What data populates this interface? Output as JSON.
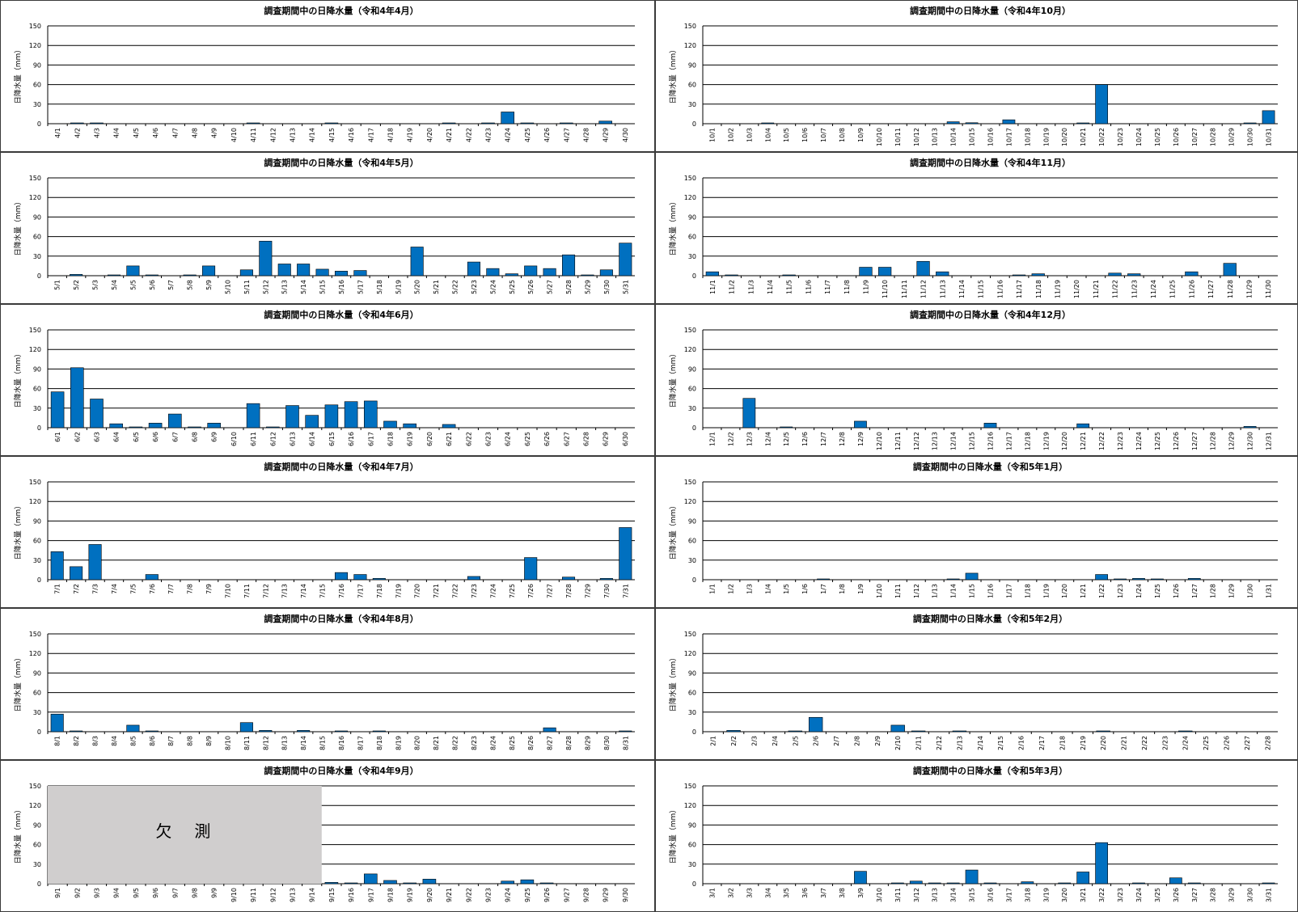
{
  "chart_data": [
    {
      "type": "bar",
      "title": "調査期間中の日降水量（令和4年4月）",
      "ylabel": "日降水量（mm）",
      "ylim": [
        0,
        150
      ],
      "yticks": [
        0,
        30,
        60,
        90,
        120,
        150
      ],
      "grid": true,
      "categories": [
        "4/1",
        "4/2",
        "4/3",
        "4/4",
        "4/5",
        "4/6",
        "4/7",
        "4/8",
        "4/9",
        "4/10",
        "4/11",
        "4/12",
        "4/13",
        "4/14",
        "4/15",
        "4/16",
        "4/17",
        "4/18",
        "4/19",
        "4/20",
        "4/21",
        "4/22",
        "4/23",
        "4/24",
        "4/25",
        "4/26",
        "4/27",
        "4/28",
        "4/29",
        "4/30"
      ],
      "values": [
        0,
        0.5,
        0.5,
        0,
        0,
        0,
        0,
        0,
        0,
        0,
        0.5,
        0,
        0,
        0,
        0.5,
        0,
        0,
        0,
        0,
        0,
        0.5,
        0,
        0.5,
        18,
        1,
        0,
        0.5,
        0,
        4,
        0
      ],
      "bar_color": "#0070C0"
    },
    {
      "type": "bar",
      "title": "調査期間中の日降水量（令和4年10月）",
      "ylabel": "日降水量（mm）",
      "ylim": [
        0,
        150
      ],
      "yticks": [
        0,
        30,
        60,
        90,
        120,
        150
      ],
      "grid": true,
      "categories": [
        "10/1",
        "10/2",
        "10/3",
        "10/4",
        "10/5",
        "10/6",
        "10/7",
        "10/8",
        "10/9",
        "10/10",
        "10/11",
        "10/12",
        "10/13",
        "10/14",
        "10/15",
        "10/16",
        "10/17",
        "10/18",
        "10/19",
        "10/20",
        "10/21",
        "10/22",
        "10/23",
        "10/24",
        "10/25",
        "10/26",
        "10/27",
        "10/28",
        "10/29",
        "10/30",
        "10/31"
      ],
      "values": [
        0,
        0,
        0,
        0.5,
        0,
        0,
        0,
        0,
        0,
        0,
        0,
        0,
        0,
        3,
        1.5,
        0,
        6,
        0,
        0,
        0,
        0.5,
        60,
        0,
        0,
        0,
        0,
        0,
        0,
        0,
        1,
        20
      ],
      "bar_color": "#0070C0"
    },
    {
      "type": "bar",
      "title": "調査期間中の日降水量（令和4年5月）",
      "ylabel": "日降水量（mm）",
      "ylim": [
        0,
        150
      ],
      "yticks": [
        0,
        30,
        60,
        90,
        120,
        150
      ],
      "grid": true,
      "categories": [
        "5/1",
        "5/2",
        "5/3",
        "5/4",
        "5/5",
        "5/6",
        "5/7",
        "5/8",
        "5/9",
        "5/10",
        "5/11",
        "5/12",
        "5/13",
        "5/14",
        "5/15",
        "5/16",
        "5/17",
        "5/18",
        "5/19",
        "5/20",
        "5/21",
        "5/22",
        "5/23",
        "5/24",
        "5/25",
        "5/26",
        "5/27",
        "5/28",
        "5/29",
        "5/30",
        "5/31"
      ],
      "values": [
        0,
        2,
        0,
        1,
        15,
        0.5,
        0,
        0.5,
        15,
        0,
        9,
        53,
        18,
        18,
        10,
        7,
        8,
        0,
        0,
        44,
        0,
        0,
        21,
        11,
        3,
        15,
        11,
        32,
        1,
        9,
        50
      ],
      "bar_color": "#0070C0"
    },
    {
      "type": "bar",
      "title": "調査期間中の日降水量（令和4年11月）",
      "ylabel": "日降水量（mm）",
      "ylim": [
        0,
        150
      ],
      "yticks": [
        0,
        30,
        60,
        90,
        120,
        150
      ],
      "grid": true,
      "categories": [
        "11/1",
        "11/2",
        "11/3",
        "11/4",
        "11/5",
        "11/6",
        "11/7",
        "11/8",
        "11/9",
        "11/10",
        "11/11",
        "11/12",
        "11/13",
        "11/14",
        "11/15",
        "11/16",
        "11/17",
        "11/18",
        "11/19",
        "11/20",
        "11/21",
        "11/22",
        "11/23",
        "11/24",
        "11/25",
        "11/26",
        "11/27",
        "11/28",
        "11/29",
        "11/30"
      ],
      "values": [
        6,
        1,
        0,
        0,
        0.5,
        0,
        0,
        0,
        13,
        13,
        0,
        22,
        6,
        0,
        0,
        0,
        0.5,
        3,
        0,
        0,
        0,
        4,
        3,
        0,
        0,
        6,
        0,
        19,
        0,
        0
      ],
      "bar_color": "#0070C0"
    },
    {
      "type": "bar",
      "title": "調査期間中の日降水量（令和4年6月）",
      "ylabel": "日降水量（mm）",
      "ylim": [
        0,
        150
      ],
      "yticks": [
        0,
        30,
        60,
        90,
        120,
        150
      ],
      "grid": true,
      "categories": [
        "6/1",
        "6/2",
        "6/3",
        "6/4",
        "6/5",
        "6/6",
        "6/7",
        "6/8",
        "6/9",
        "6/10",
        "6/11",
        "6/12",
        "6/13",
        "6/14",
        "6/15",
        "6/16",
        "6/17",
        "6/18",
        "6/19",
        "6/20",
        "6/21",
        "6/22",
        "6/23",
        "6/24",
        "6/25",
        "6/26",
        "6/27",
        "6/28",
        "6/29",
        "6/30"
      ],
      "values": [
        55,
        92,
        44,
        6,
        1,
        7,
        21,
        0.5,
        7,
        0,
        37,
        1,
        34,
        19,
        35,
        40,
        41,
        10,
        6,
        0,
        5,
        0,
        0,
        0,
        0,
        0,
        0,
        0,
        0,
        0
      ],
      "bar_color": "#0070C0"
    },
    {
      "type": "bar",
      "title": "調査期間中の日降水量（令和4年12月）",
      "ylabel": "日降水量（mm）",
      "ylim": [
        0,
        150
      ],
      "yticks": [
        0,
        30,
        60,
        90,
        120,
        150
      ],
      "grid": true,
      "categories": [
        "12/1",
        "12/2",
        "12/3",
        "12/4",
        "12/5",
        "12/6",
        "12/7",
        "12/8",
        "12/9",
        "12/10",
        "12/11",
        "12/12",
        "12/13",
        "12/14",
        "12/15",
        "12/16",
        "12/17",
        "12/18",
        "12/19",
        "12/20",
        "12/21",
        "12/22",
        "12/23",
        "12/24",
        "12/25",
        "12/26",
        "12/27",
        "12/28",
        "12/29",
        "12/30",
        "12/31"
      ],
      "values": [
        0,
        0,
        45,
        0,
        0.5,
        0,
        0,
        0,
        10,
        0,
        0,
        0,
        0,
        0,
        0,
        7,
        0,
        0,
        0,
        0,
        6,
        0,
        0,
        0,
        0,
        0,
        0,
        0,
        0,
        2,
        0
      ],
      "bar_color": "#0070C0"
    },
    {
      "type": "bar",
      "title": "調査期間中の日降水量（令和4年7月）",
      "ylabel": "日降水量（mm）",
      "ylim": [
        0,
        150
      ],
      "yticks": [
        0,
        30,
        60,
        90,
        120,
        150
      ],
      "grid": true,
      "categories": [
        "7/1",
        "7/2",
        "7/3",
        "7/4",
        "7/5",
        "7/6",
        "7/7",
        "7/8",
        "7/9",
        "7/10",
        "7/11",
        "7/12",
        "7/13",
        "7/14",
        "7/15",
        "7/16",
        "7/17",
        "7/18",
        "7/19",
        "7/20",
        "7/21",
        "7/22",
        "7/23",
        "7/24",
        "7/25",
        "7/26",
        "7/27",
        "7/28",
        "7/29",
        "7/30",
        "7/31"
      ],
      "values": [
        43,
        20,
        54,
        0,
        0,
        8,
        0,
        0,
        0,
        0,
        0,
        0,
        0,
        0,
        0,
        11,
        8,
        2,
        0,
        0,
        0,
        0,
        5,
        0,
        0,
        34,
        0,
        4,
        0,
        2,
        80
      ],
      "bar_color": "#0070C0"
    },
    {
      "type": "bar",
      "title": "調査期間中の日降水量（令和5年1月）",
      "ylabel": "日降水量（mm）",
      "ylim": [
        0,
        150
      ],
      "yticks": [
        0,
        30,
        60,
        90,
        120,
        150
      ],
      "grid": true,
      "categories": [
        "1/1",
        "1/2",
        "1/3",
        "1/4",
        "1/5",
        "1/6",
        "1/7",
        "1/8",
        "1/9",
        "1/10",
        "1/11",
        "1/12",
        "1/13",
        "1/14",
        "1/15",
        "1/16",
        "1/17",
        "1/18",
        "1/19",
        "1/20",
        "1/21",
        "1/22",
        "1/23",
        "1/24",
        "1/25",
        "1/26",
        "1/27",
        "1/28",
        "1/29",
        "1/30",
        "1/31"
      ],
      "values": [
        0,
        0,
        0,
        0,
        0,
        0,
        1,
        0,
        0,
        0,
        0,
        0,
        0,
        0.5,
        10,
        0,
        0,
        0,
        0,
        0,
        0,
        8,
        1,
        2,
        1,
        0,
        2,
        0,
        0,
        0,
        0
      ],
      "bar_color": "#0070C0"
    },
    {
      "type": "bar",
      "title": "調査期間中の日降水量（令和4年8月）",
      "ylabel": "日降水量（mm）",
      "ylim": [
        0,
        150
      ],
      "yticks": [
        0,
        30,
        60,
        90,
        120,
        150
      ],
      "grid": true,
      "categories": [
        "8/1",
        "8/2",
        "8/3",
        "8/4",
        "8/5",
        "8/6",
        "8/7",
        "8/8",
        "8/9",
        "8/10",
        "8/11",
        "8/12",
        "8/13",
        "8/14",
        "8/15",
        "8/16",
        "8/17",
        "8/18",
        "8/19",
        "8/20",
        "8/21",
        "8/22",
        "8/23",
        "8/24",
        "8/25",
        "8/26",
        "8/27",
        "8/28",
        "8/29",
        "8/30",
        "8/31"
      ],
      "values": [
        27,
        1,
        0,
        0,
        10,
        1,
        0,
        0,
        0,
        0,
        14,
        2,
        0,
        2,
        0,
        1,
        0,
        1,
        0,
        0,
        0,
        0,
        0,
        0,
        0,
        0,
        6,
        0,
        0,
        0,
        0.5
      ],
      "bar_color": "#0070C0"
    },
    {
      "type": "bar",
      "title": "調査期間中の日降水量（令和5年2月）",
      "ylabel": "日降水量（mm）",
      "ylim": [
        0,
        150
      ],
      "yticks": [
        0,
        30,
        60,
        90,
        120,
        150
      ],
      "grid": true,
      "categories": [
        "2/1",
        "2/2",
        "2/3",
        "2/4",
        "2/5",
        "2/6",
        "2/7",
        "2/8",
        "2/9",
        "2/10",
        "2/11",
        "2/12",
        "2/13",
        "2/14",
        "2/15",
        "2/16",
        "2/17",
        "2/18",
        "2/19",
        "2/20",
        "2/21",
        "2/22",
        "2/23",
        "2/24",
        "2/25",
        "2/26",
        "2/27",
        "2/28"
      ],
      "values": [
        0,
        2,
        0,
        0,
        0.5,
        22,
        0,
        0,
        0,
        10,
        0.5,
        0,
        1,
        0,
        0,
        0,
        0,
        0,
        0,
        1,
        0,
        0,
        0,
        0.5,
        0,
        0,
        0,
        0
      ],
      "bar_color": "#0070C0"
    },
    {
      "type": "bar",
      "title": "調査期間中の日降水量（令和4年9月）",
      "ylabel": "日降水量（mm）",
      "ylim": [
        0,
        150
      ],
      "yticks": [
        0,
        30,
        60,
        90,
        120,
        150
      ],
      "grid": true,
      "categories": [
        "9/1",
        "9/2",
        "9/3",
        "9/4",
        "9/5",
        "9/6",
        "9/7",
        "9/8",
        "9/9",
        "9/10",
        "9/11",
        "9/12",
        "9/13",
        "9/14",
        "9/15",
        "9/16",
        "9/17",
        "9/18",
        "9/19",
        "9/20",
        "9/21",
        "9/22",
        "9/23",
        "9/24",
        "9/25",
        "9/26",
        "9/27",
        "9/28",
        "9/29",
        "9/30"
      ],
      "values": [
        0,
        0,
        0,
        0,
        0,
        0,
        0,
        0,
        0,
        0,
        0,
        0,
        0,
        0,
        2,
        1,
        15,
        5,
        1,
        7,
        0,
        0,
        0,
        4,
        6,
        1,
        0,
        0,
        0,
        0
      ],
      "bar_color": "#0070C0",
      "missing": {
        "label": "欠　測",
        "from": "9/1",
        "to": "9/14",
        "color": "#D0CECE"
      }
    },
    {
      "type": "bar",
      "title": "調査期間中の日降水量（令和5年3月）",
      "ylabel": "日降水量（mm）",
      "ylim": [
        0,
        150
      ],
      "yticks": [
        0,
        30,
        60,
        90,
        120,
        150
      ],
      "grid": true,
      "categories": [
        "3/1",
        "3/2",
        "3/3",
        "3/4",
        "3/5",
        "3/6",
        "3/7",
        "3/8",
        "3/9",
        "3/10",
        "3/11",
        "3/12",
        "3/13",
        "3/14",
        "3/15",
        "3/16",
        "3/17",
        "3/18",
        "3/19",
        "3/20",
        "3/21",
        "3/22",
        "3/23",
        "3/24",
        "3/25",
        "3/26",
        "3/27",
        "3/28",
        "3/29",
        "3/30",
        "3/31"
      ],
      "values": [
        0,
        0,
        0,
        0,
        0,
        0,
        0,
        0,
        19,
        0,
        1,
        4,
        1,
        1,
        21,
        1,
        0,
        3,
        0,
        1,
        18,
        63,
        0,
        1,
        0,
        9,
        1,
        0,
        0,
        0,
        1
      ],
      "bar_color": "#0070C0"
    }
  ]
}
